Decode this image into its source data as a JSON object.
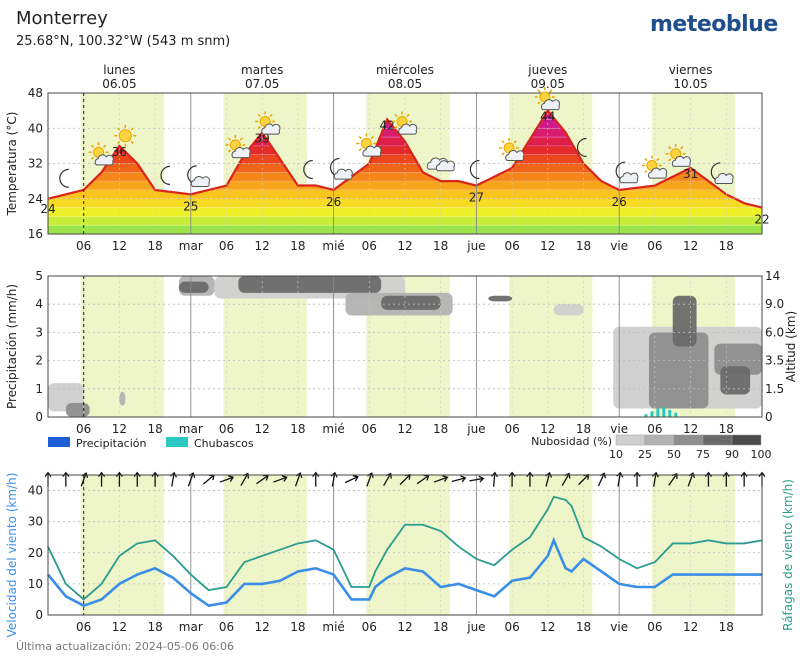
{
  "header": {
    "location": "Monterrey",
    "coordinates": "25.68°N, 100.32°W (543 m snm)",
    "brand": "meteoblue"
  },
  "footer": {
    "updated": "Última actualización: 2024-05-06 06:06"
  },
  "days": [
    {
      "name": "lunes",
      "date": "06.05"
    },
    {
      "name": "martes",
      "date": "07.05"
    },
    {
      "name": "miércoles",
      "date": "08.05"
    },
    {
      "name": "jueves",
      "date": "09.05"
    },
    {
      "name": "viernes",
      "date": "10.05"
    }
  ],
  "x_tick_labels": [
    "06",
    "12",
    "18",
    "mar",
    "06",
    "12",
    "18",
    "mié",
    "06",
    "12",
    "18",
    "jue",
    "06",
    "12",
    "18",
    "vie",
    "06",
    "12",
    "18"
  ],
  "colors": {
    "wind_speed": "#3a8ee6",
    "wind_gusts": "#2a9d8f",
    "precipitation": "#1f5fd6",
    "showers": "#2cc7c0",
    "daytime": "#eef5c8",
    "curve": "#d9251c"
  },
  "chart_data": [
    {
      "type": "area",
      "title": "",
      "ylabel": "Temperatura (°C)",
      "ylim": [
        16,
        48
      ],
      "yticks": [
        16,
        24,
        32,
        40,
        48
      ],
      "x_unit": "hours from 2024-05-06 00:00",
      "x": [
        0,
        6,
        9,
        12,
        15,
        18,
        24,
        30,
        33,
        36,
        39,
        42,
        45,
        48,
        54,
        57,
        60,
        63,
        66,
        69,
        72,
        78,
        84,
        87,
        90,
        93,
        96,
        102,
        108,
        111,
        114,
        117,
        120
      ],
      "values": [
        24,
        26,
        30,
        36,
        32,
        26,
        25,
        27,
        34,
        39,
        33,
        27,
        27,
        26,
        32,
        42,
        37,
        30,
        28,
        28,
        27,
        31,
        44,
        39,
        32,
        28,
        26,
        27,
        31,
        28,
        25,
        23,
        22
      ],
      "labels": [
        {
          "x": 0,
          "value": 24
        },
        {
          "x": 12,
          "value": 36
        },
        {
          "x": 24,
          "value": 25
        },
        {
          "x": 36,
          "value": 39
        },
        {
          "x": 48,
          "value": 26
        },
        {
          "x": 57,
          "value": 42
        },
        {
          "x": 72,
          "value": 27
        },
        {
          "x": 84,
          "value": 44
        },
        {
          "x": 96,
          "value": 26
        },
        {
          "x": 108,
          "value": 31
        },
        {
          "x": 120,
          "value": 22
        }
      ],
      "weather_icons": [
        {
          "x": 3,
          "icon": "moon-icon"
        },
        {
          "x": 9,
          "icon": "sun-cloud-icon"
        },
        {
          "x": 13,
          "icon": "sun-icon"
        },
        {
          "x": 20,
          "icon": "moon-icon"
        },
        {
          "x": 25,
          "icon": "moon-cloud-icon"
        },
        {
          "x": 32,
          "icon": "sun-cloud-icon"
        },
        {
          "x": 37,
          "icon": "sun-cloud-icon"
        },
        {
          "x": 44,
          "icon": "moon-icon"
        },
        {
          "x": 49,
          "icon": "moon-cloud-icon"
        },
        {
          "x": 54,
          "icon": "sun-cloud-icon"
        },
        {
          "x": 60,
          "icon": "sun-cloud-icon"
        },
        {
          "x": 66,
          "icon": "cloud-icon"
        },
        {
          "x": 72,
          "icon": "moon-icon"
        },
        {
          "x": 78,
          "icon": "sun-cloud-icon"
        },
        {
          "x": 84,
          "icon": "sun-cloud-icon"
        },
        {
          "x": 90,
          "icon": "moon-icon"
        },
        {
          "x": 97,
          "icon": "moon-cloud-icon"
        },
        {
          "x": 102,
          "icon": "sun-cloud-icon"
        },
        {
          "x": 106,
          "icon": "sun-cloud-icon"
        },
        {
          "x": 113,
          "icon": "moon-cloud-icon"
        }
      ]
    },
    {
      "type": "heatmap",
      "ylabel": "Precipitación (mm/h)",
      "ylabel_right": "Altitud (km)",
      "ylim": [
        0,
        5
      ],
      "yticks": [
        0,
        1,
        2,
        3,
        4,
        5
      ],
      "altitude_ticks": [
        "0",
        "1.5",
        "3.5",
        "6.0",
        "9.0",
        "14"
      ],
      "legend": [
        {
          "label": "Precipitación",
          "color": "#1f5fd6"
        },
        {
          "label": "Chubascos",
          "color": "#2cc7c0"
        }
      ],
      "cloud_legend_title": "Nubosidad (%)",
      "cloud_levels": [
        10,
        25,
        50,
        75,
        90,
        100
      ],
      "cloud_colors": [
        "#e6e6e6",
        "#cfcfcf",
        "#b2b2b2",
        "#8e8e8e",
        "#6a6a6a",
        "#4b4b4b"
      ],
      "clouds": [
        {
          "x0": 0,
          "x1": 6,
          "level": 1,
          "alt0": 0.2,
          "alt1": 1.2
        },
        {
          "x0": 3,
          "x1": 7,
          "level": 3,
          "alt0": 0.0,
          "alt1": 0.5
        },
        {
          "x0": 12,
          "x1": 13,
          "level": 2,
          "alt0": 0.4,
          "alt1": 0.9
        },
        {
          "x0": 22,
          "x1": 28,
          "level": 2,
          "alt0": 4.3,
          "alt1": 5.0
        },
        {
          "x0": 22,
          "x1": 27,
          "level": 4,
          "alt0": 4.4,
          "alt1": 4.8
        },
        {
          "x0": 28,
          "x1": 60,
          "level": 1,
          "alt0": 4.2,
          "alt1": 5.0
        },
        {
          "x0": 32,
          "x1": 56,
          "level": 4,
          "alt0": 4.4,
          "alt1": 5.0
        },
        {
          "x0": 50,
          "x1": 68,
          "level": 2,
          "alt0": 3.6,
          "alt1": 4.4
        },
        {
          "x0": 56,
          "x1": 66,
          "level": 4,
          "alt0": 3.8,
          "alt1": 4.3
        },
        {
          "x0": 74,
          "x1": 78,
          "level": 4,
          "alt0": 4.1,
          "alt1": 4.3
        },
        {
          "x0": 85,
          "x1": 90,
          "level": 1,
          "alt0": 3.6,
          "alt1": 4.0
        },
        {
          "x0": 95,
          "x1": 120,
          "level": 1,
          "alt0": 0.3,
          "alt1": 3.2
        },
        {
          "x0": 101,
          "x1": 111,
          "level": 3,
          "alt0": 0.3,
          "alt1": 3.0
        },
        {
          "x0": 105,
          "x1": 109,
          "level": 4,
          "alt0": 2.5,
          "alt1": 4.3
        },
        {
          "x0": 112,
          "x1": 120,
          "level": 3,
          "alt0": 1.5,
          "alt1": 2.6
        },
        {
          "x0": 113,
          "x1": 118,
          "level": 4,
          "alt0": 0.8,
          "alt1": 1.8
        }
      ],
      "showers_x": [
        100.5,
        101.5,
        102.5,
        103.5,
        104.5,
        105.5
      ],
      "showers_values": [
        0.1,
        0.2,
        0.3,
        0.35,
        0.25,
        0.15
      ]
    },
    {
      "type": "line",
      "ylabel": "Velocidad del viento (km/h)",
      "ylabel_right": "Ráfagas de viento (km/h)",
      "ylim": [
        0,
        45
      ],
      "yticks": [
        0,
        10,
        20,
        30,
        40
      ],
      "x": [
        0,
        3,
        6,
        9,
        12,
        15,
        18,
        21,
        24,
        27,
        30,
        33,
        36,
        39,
        42,
        45,
        48,
        51,
        54,
        55,
        57,
        60,
        63,
        66,
        69,
        72,
        75,
        78,
        81,
        84,
        85,
        87,
        88,
        90,
        93,
        96,
        99,
        102,
        105,
        108,
        111,
        114,
        117,
        120
      ],
      "series": [
        {
          "name": "Velocidad del viento",
          "values": [
            13,
            6,
            3,
            5,
            10,
            13,
            15,
            12,
            7,
            3,
            4,
            10,
            10,
            11,
            14,
            15,
            13,
            5,
            5,
            9,
            12,
            15,
            14,
            9,
            10,
            8,
            6,
            11,
            12,
            19,
            24,
            15,
            14,
            18,
            14,
            10,
            9,
            9,
            13,
            13,
            13,
            13,
            13,
            13
          ]
        },
        {
          "name": "Ráfagas de viento",
          "values": [
            22,
            10,
            5,
            10,
            19,
            23,
            24,
            19,
            13,
            8,
            9,
            17,
            19,
            21,
            23,
            24,
            21,
            9,
            9,
            14,
            21,
            29,
            29,
            27,
            22,
            18,
            16,
            21,
            25,
            34,
            38,
            37,
            35,
            25,
            22,
            18,
            15,
            17,
            23,
            23,
            24,
            23,
            23,
            24
          ]
        }
      ],
      "wind_direction_arrows": [
        {
          "x": 0,
          "angle": 180
        },
        {
          "x": 3,
          "angle": 180
        },
        {
          "x": 6,
          "angle": 200
        },
        {
          "x": 9,
          "angle": 180
        },
        {
          "x": 12,
          "angle": 180
        },
        {
          "x": 15,
          "angle": 180
        },
        {
          "x": 18,
          "angle": 180
        },
        {
          "x": 21,
          "angle": 190
        },
        {
          "x": 24,
          "angle": 200
        },
        {
          "x": 27,
          "angle": 230
        },
        {
          "x": 30,
          "angle": 250
        },
        {
          "x": 33,
          "angle": 210
        },
        {
          "x": 36,
          "angle": 235
        },
        {
          "x": 39,
          "angle": 250
        },
        {
          "x": 42,
          "angle": 200
        },
        {
          "x": 45,
          "angle": 180
        },
        {
          "x": 48,
          "angle": 190
        },
        {
          "x": 51,
          "angle": 245
        },
        {
          "x": 54,
          "angle": 200
        },
        {
          "x": 57,
          "angle": 210
        },
        {
          "x": 60,
          "angle": 225
        },
        {
          "x": 63,
          "angle": 235
        },
        {
          "x": 66,
          "angle": 250
        },
        {
          "x": 69,
          "angle": 255
        },
        {
          "x": 72,
          "angle": 260
        },
        {
          "x": 75,
          "angle": 185
        },
        {
          "x": 78,
          "angle": 180
        },
        {
          "x": 81,
          "angle": 180
        },
        {
          "x": 84,
          "angle": 195
        },
        {
          "x": 87,
          "angle": 210
        },
        {
          "x": 90,
          "angle": 225
        },
        {
          "x": 93,
          "angle": 205
        },
        {
          "x": 96,
          "angle": 190
        },
        {
          "x": 99,
          "angle": 180
        },
        {
          "x": 102,
          "angle": 190
        },
        {
          "x": 105,
          "angle": 215
        },
        {
          "x": 108,
          "angle": 200
        },
        {
          "x": 111,
          "angle": 180
        },
        {
          "x": 114,
          "angle": 180
        },
        {
          "x": 117,
          "angle": 180
        },
        {
          "x": 120,
          "angle": 180
        }
      ]
    }
  ]
}
